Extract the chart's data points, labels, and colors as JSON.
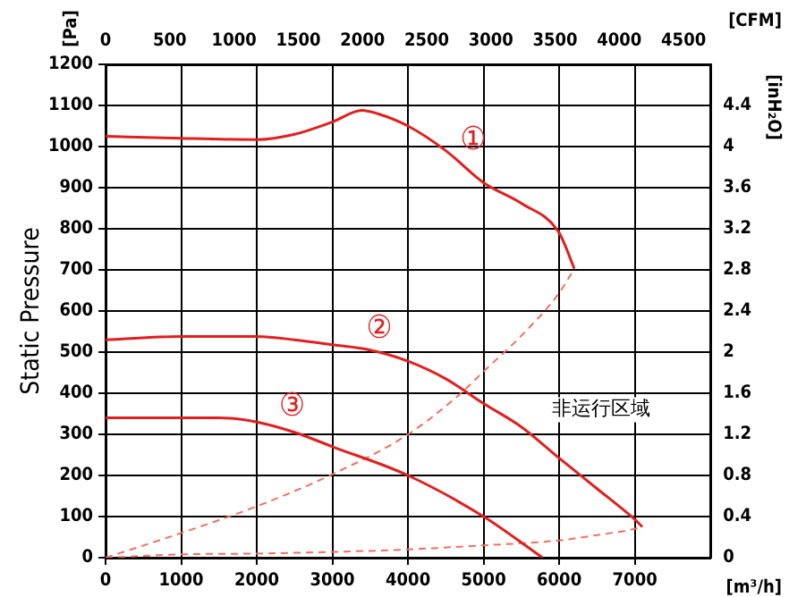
{
  "chart_data": {
    "type": "line",
    "ylabel": "Static Pressure",
    "xlabel": "[m³/h]",
    "x2label": "[CFM]",
    "y2label": "[inH₂O]",
    "xlim": [
      0,
      8000
    ],
    "xticks": [
      0,
      1000,
      2000,
      3000,
      4000,
      5000,
      6000,
      7000
    ],
    "x2lim": [
      0,
      4709
    ],
    "x2ticks": [
      0,
      500,
      1000,
      1500,
      2000,
      2500,
      3000,
      3500,
      4000,
      4500
    ],
    "ylim": [
      0,
      1200
    ],
    "yticks": [
      0,
      100,
      200,
      300,
      400,
      500,
      600,
      700,
      800,
      900,
      1000,
      1100,
      1200
    ],
    "y2lim": [
      0,
      4.8
    ],
    "y2ticks": [
      0,
      0.4,
      0.8,
      1.2,
      1.6,
      2.0,
      2.4,
      2.8,
      3.2,
      3.6,
      4.0,
      4.4
    ],
    "grid": true,
    "legend": false,
    "marker": "none",
    "series": [
      {
        "name": "①",
        "color": "#e02020",
        "line_style": "solid",
        "x": [
          0,
          1000,
          2000,
          2500,
          3000,
          3390,
          3600,
          4000,
          4500,
          5000,
          5500,
          6000,
          6200
        ],
        "values": [
          1025,
          1020,
          1017,
          1030,
          1060,
          1088,
          1080,
          1050,
          990,
          912,
          862,
          790,
          703
        ]
      },
      {
        "name": "②",
        "color": "#e02020",
        "line_style": "solid",
        "x": [
          0,
          1000,
          2000,
          2500,
          3000,
          3500,
          4000,
          4500,
          5000,
          5500,
          6000,
          6500,
          7000,
          7100
        ],
        "values": [
          530,
          538,
          538,
          530,
          518,
          505,
          478,
          435,
          375,
          318,
          242,
          168,
          93,
          75
        ]
      },
      {
        "name": "③",
        "color": "#e02020",
        "line_style": "solid",
        "x": [
          0,
          1000,
          1500,
          2000,
          2500,
          3000,
          4000,
          5000,
          5780
        ],
        "values": [
          340,
          340,
          340,
          330,
          305,
          270,
          200,
          100,
          0
        ]
      },
      {
        "color": "#f07060",
        "line_style": "dashed",
        "x": [
          0,
          1000,
          2000,
          3000,
          4000,
          4700,
          5000,
          5500,
          6000,
          6200
        ],
        "values": [
          0,
          60,
          125,
          203,
          300,
          400,
          453,
          540,
          644,
          703
        ]
      },
      {
        "color": "#f07060",
        "line_style": "dashed",
        "x": [
          0,
          1000,
          2000,
          3000,
          4000,
          5000,
          6000,
          6500,
          7000,
          7100
        ],
        "values": [
          0,
          8,
          10,
          14,
          20,
          30,
          42,
          55,
          70,
          75
        ]
      }
    ],
    "annotations": [
      "[Pa]",
      "非运行区域"
    ]
  }
}
